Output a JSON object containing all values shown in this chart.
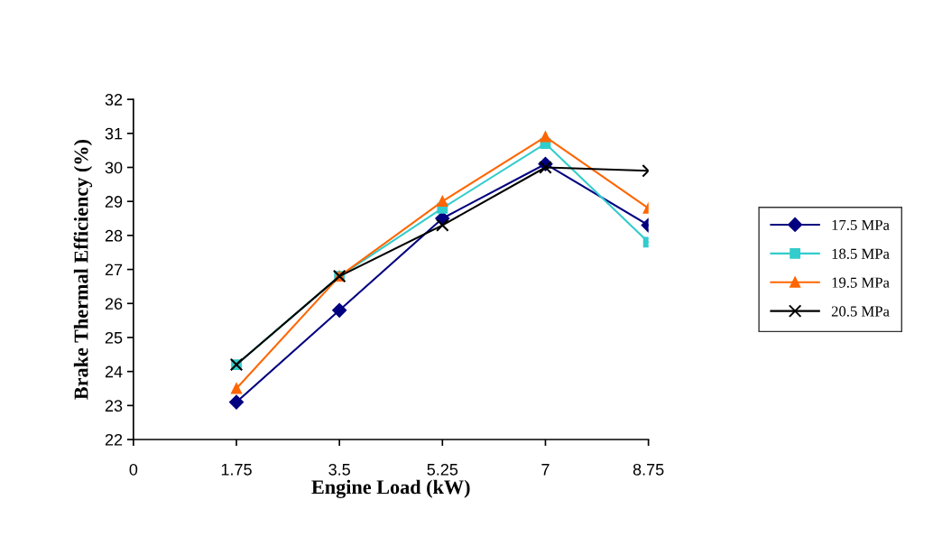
{
  "chart_data": {
    "type": "line",
    "xlabel": "Engine Load (kW)",
    "ylabel": "Brake Thermal Efficiency (%)",
    "x": [
      1.75,
      3.5,
      5.25,
      7,
      8.75
    ],
    "series": [
      {
        "name": "17.5 MPa",
        "color": "#000080",
        "marker": "diamond",
        "values": [
          23.1,
          25.8,
          28.5,
          30.1,
          28.3
        ]
      },
      {
        "name": "18.5 MPa",
        "color": "#33cccc",
        "marker": "square",
        "values": [
          24.2,
          26.8,
          28.8,
          30.7,
          27.8
        ]
      },
      {
        "name": "19.5 MPa",
        "color": "#ff6600",
        "marker": "triangle",
        "values": [
          23.5,
          26.8,
          29.0,
          30.9,
          28.8
        ]
      },
      {
        "name": "20.5 MPa",
        "color": "#000000",
        "marker": "cross",
        "values": [
          24.2,
          26.8,
          28.3,
          30.0,
          29.9
        ]
      }
    ],
    "xlim": [
      0,
      8.75
    ],
    "xticks": [
      0,
      1.75,
      3.5,
      5.25,
      7,
      8.75
    ],
    "ylim": [
      22,
      32
    ],
    "yticks": [
      22,
      23,
      24,
      25,
      26,
      27,
      28,
      29,
      30,
      31,
      32
    ],
    "grid": false,
    "legend": "right"
  }
}
